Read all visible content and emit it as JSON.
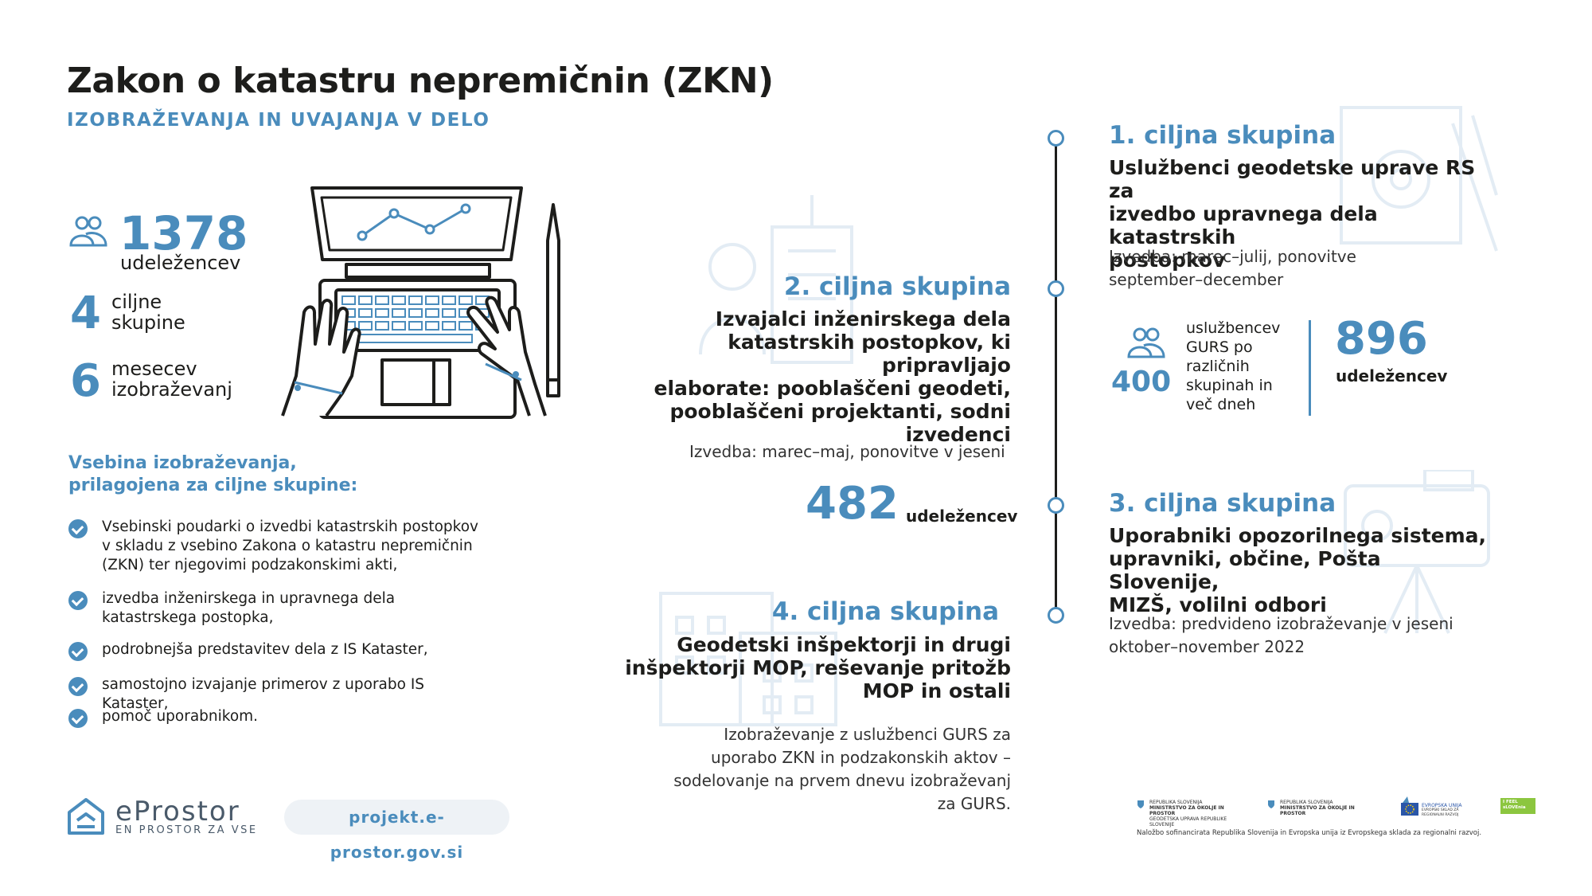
{
  "header": {
    "title": "Zakon o katastru nepremičnin (ZKN)",
    "subtitle": "IZOBRAŽEVANJA IN UVAJANJA V DELO"
  },
  "stats": {
    "participants_value": "1378",
    "participants_label": "udeležencev",
    "groups_value": "4",
    "groups_label_1": "ciljne",
    "groups_label_2": "skupine",
    "months_value": "6",
    "months_label_1": "mesecev",
    "months_label_2": "izobraževanj"
  },
  "content": {
    "heading_1": "Vsebina izobraževanja,",
    "heading_2": "prilagojena za ciljne skupine:",
    "items": [
      "Vsebinski poudarki o izvedbi katastrskih postopkov v skladu z vsebino Zakona o katastru nepremičnin (ZKN) ter njegovimi podzakonskimi akti,",
      "izvedba inženirskega in upravnega dela katastrskega postopka,",
      "podrobnejša predstavitev dela z IS Kataster,",
      "samostojno izvajanje primerov z uporabo IS Kataster,",
      "pomoč uporabnikom."
    ]
  },
  "groups": {
    "g1": {
      "title": "1. ciljna skupina",
      "body_1": "Uslužbenci geodetske uprave RS za",
      "body_2": "izvedbo upravnega dela katastrskih",
      "body_3": "postopkov",
      "note_1": "Izvedba: marec–julij, ponovitve",
      "note_2": "september–december",
      "staff_value": "400",
      "staff_label_1": "uslužbencev",
      "staff_label_2": "GURS po",
      "staff_label_3": "različnih",
      "staff_label_4": "skupinah in",
      "staff_label_5": "več dneh",
      "participants_value": "896",
      "participants_label": "udeležencev"
    },
    "g2": {
      "title": "2. ciljna skupina",
      "body_1": "Izvajalci inženirskega dela",
      "body_2": "katastrskih postopkov, ki pripravljajo",
      "body_3": "elaborate: pooblaščeni geodeti,",
      "body_4": "pooblaščeni  projektanti, sodni",
      "body_5": "izvedenci",
      "note": "Izvedba: marec–maj, ponovitve v jeseni",
      "participants_value": "482",
      "participants_label": "udeležencev"
    },
    "g3": {
      "title": "3. ciljna skupina",
      "body_1": "Uporabniki opozorilnega sistema,",
      "body_2": "upravniki, občine, Pošta Slovenije,",
      "body_3": "MIZŠ, volilni odbori",
      "note_1": "Izvedba: predvideno izobraževanje v jeseni",
      "note_2": "oktober–november 2022"
    },
    "g4": {
      "title": "4. ciljna skupina",
      "body_1": "Geodetski inšpektorji in drugi",
      "body_2": "inšpektorji MOP, reševanje pritožb",
      "body_3": "MOP in ostali",
      "note_1": "Izobraževanje z uslužbenci GURS za",
      "note_2": "uporabo ZKN in podzakonskih aktov  –",
      "note_3": "sodelovanje na prvem dnevu izobraževanj",
      "note_4": "za GURS."
    }
  },
  "footer": {
    "logo_name": "eProstor",
    "logo_tagline": "EN PROSTOR ZA VSE",
    "url": "projekt.e-prostor.gov.si",
    "partner_1_line_1": "REPUBLIKA SLOVENIJA",
    "partner_1_line_2": "MINISTRSTVO ZA OKOLJE IN PROSTOR",
    "partner_1_line_3": "GEODETSKA UPRAVA REPUBLIKE SLOVENIJE",
    "partner_2_line_1": "REPUBLIKA SLOVENIJA",
    "partner_2_line_2": "MINISTRSTVO ZA OKOLJE IN PROSTOR",
    "partner_3_line_1": "EVROPSKA UNIJA",
    "partner_3_line_2": "EVROPSKI SKLAD ZA REGIONALNI RAZVOJ",
    "partner_4_line_1": "I FEEL",
    "partner_4_line_2": "sLOVEnia",
    "cofinancing": "Naložbo sofinancirata Republika Slovenija in Evropska unija iz Evropskega sklada za regionalni razvoj."
  },
  "colors": {
    "accent": "#4a8cbc",
    "text": "#1d1d1b",
    "faint": "#e3ecf4"
  }
}
